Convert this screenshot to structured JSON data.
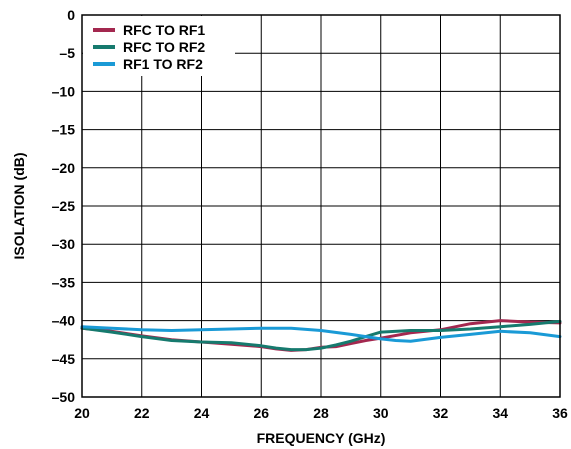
{
  "chart_data": {
    "type": "line",
    "title": "",
    "xlabel": "FREQUENCY (GHz)",
    "ylabel": "ISOLATION (dB)",
    "xlim": [
      20,
      36
    ],
    "ylim": [
      -50,
      0
    ],
    "xticks": [
      "20",
      "22",
      "24",
      "26",
      "28",
      "30",
      "32",
      "34",
      "36"
    ],
    "yticks": [
      "0",
      "–5",
      "–10",
      "–15",
      "–20",
      "–25",
      "–30",
      "–35",
      "–40",
      "–45",
      "–50"
    ],
    "grid": true,
    "legend_position": "top-left",
    "series": [
      {
        "name": "RFC TO RF1",
        "color": "#a3284f",
        "x": [
          20,
          21,
          22,
          23,
          24,
          25,
          26,
          26.5,
          27,
          27.5,
          28,
          28.5,
          29,
          29.5,
          30,
          31,
          32,
          33,
          34,
          35,
          36
        ],
        "y": [
          -41,
          -41.4,
          -42,
          -42.5,
          -42.8,
          -43.1,
          -43.4,
          -43.7,
          -43.9,
          -43.8,
          -43.5,
          -43.4,
          -43.0,
          -42.6,
          -42.3,
          -41.6,
          -41.2,
          -40.4,
          -40.0,
          -40.2,
          -40.3
        ]
      },
      {
        "name": "RFC TO RF2",
        "color": "#167a6e",
        "x": [
          20,
          21,
          22,
          23,
          24,
          25,
          26,
          26.5,
          27,
          27.5,
          28,
          28.5,
          29,
          29.5,
          30,
          31,
          32,
          33,
          34,
          35,
          36
        ],
        "y": [
          -41,
          -41.5,
          -42.1,
          -42.6,
          -42.8,
          -42.9,
          -43.3,
          -43.6,
          -43.8,
          -43.8,
          -43.6,
          -43.2,
          -42.7,
          -42.1,
          -41.5,
          -41.3,
          -41.3,
          -41.1,
          -40.8,
          -40.5,
          -40.1
        ]
      },
      {
        "name": "RF1 TO RF2",
        "color": "#1a9ad6",
        "x": [
          20,
          21,
          22,
          23,
          24,
          25,
          26,
          27,
          28,
          29,
          30,
          30.5,
          31,
          32,
          33,
          34,
          35,
          36
        ],
        "y": [
          -40.8,
          -41.0,
          -41.2,
          -41.3,
          -41.2,
          -41.1,
          -41.0,
          -41.0,
          -41.3,
          -41.8,
          -42.4,
          -42.6,
          -42.7,
          -42.2,
          -41.8,
          -41.4,
          -41.6,
          -42.1
        ]
      }
    ]
  }
}
